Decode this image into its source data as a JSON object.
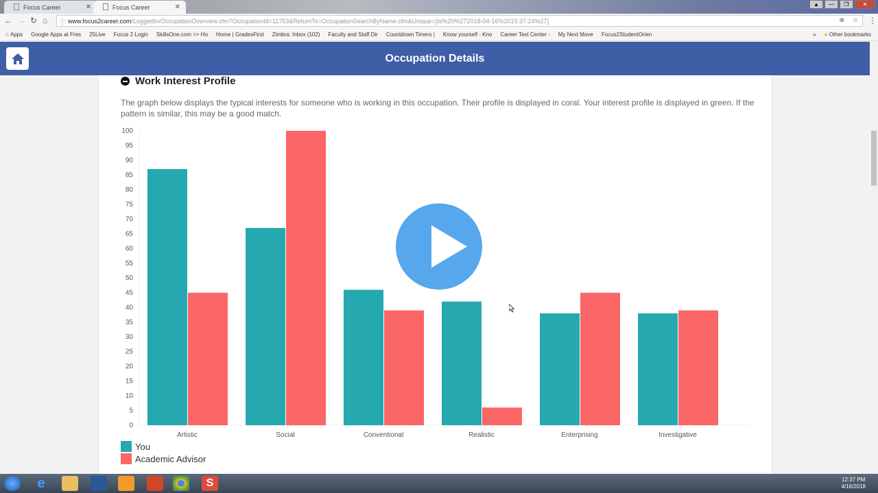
{
  "browser": {
    "tabs": [
      {
        "label": "Focus Career"
      },
      {
        "label": "Focus Career"
      }
    ],
    "url_host": "www.focus2career.com",
    "url_path": "/LoggedIn/OccupationOverview.cfm?OccupationId=11753&ReturnTo=OccupationSearchByName.cfm&Unique={ts%20%272018-04-16%2015:37:24%27}",
    "bookmarks": [
      "Apps",
      "Google Apps at Fres",
      "25Live",
      "Focus 2 Login",
      "SkillsOne.com >> Ho",
      "Home | GradesFirst",
      "Zimbra: Inbox (102)",
      "Faculty and Staff Dir",
      "Countdown Timers |",
      "Know yourself - Kno",
      "Career Test Center -",
      "My Next Move",
      "Focus2StudentOrien"
    ],
    "other_bookmarks": "Other bookmarks",
    "more": "»"
  },
  "header": {
    "title": "Occupation Details"
  },
  "section": {
    "title": "Work Interest Profile",
    "description": "The graph below displays the typical interests for someone who is working in this occupation. Their profile is displayed in coral. Your interest profile is displayed in green. If the pattern is similar, this may be a good match."
  },
  "chart_data": {
    "type": "bar",
    "categories": [
      "Artistic",
      "Social",
      "Conventional",
      "Realistic",
      "Enterprising",
      "Investigative"
    ],
    "series": [
      {
        "name": "You",
        "color": "#26a8b0",
        "values": [
          87,
          67,
          46,
          42,
          38,
          38
        ]
      },
      {
        "name": "Academic Advisor",
        "color": "#fb6666",
        "values": [
          45,
          100,
          39,
          6,
          45,
          39
        ]
      }
    ],
    "ylim": [
      0,
      100
    ],
    "yticks": [
      0,
      5,
      10,
      15,
      20,
      25,
      30,
      35,
      40,
      45,
      50,
      55,
      60,
      65,
      70,
      75,
      80,
      85,
      90,
      95,
      100
    ],
    "legend": "bottom-left"
  },
  "taskbar": {
    "time": "12:37 PM",
    "date": "4/16/2018"
  }
}
